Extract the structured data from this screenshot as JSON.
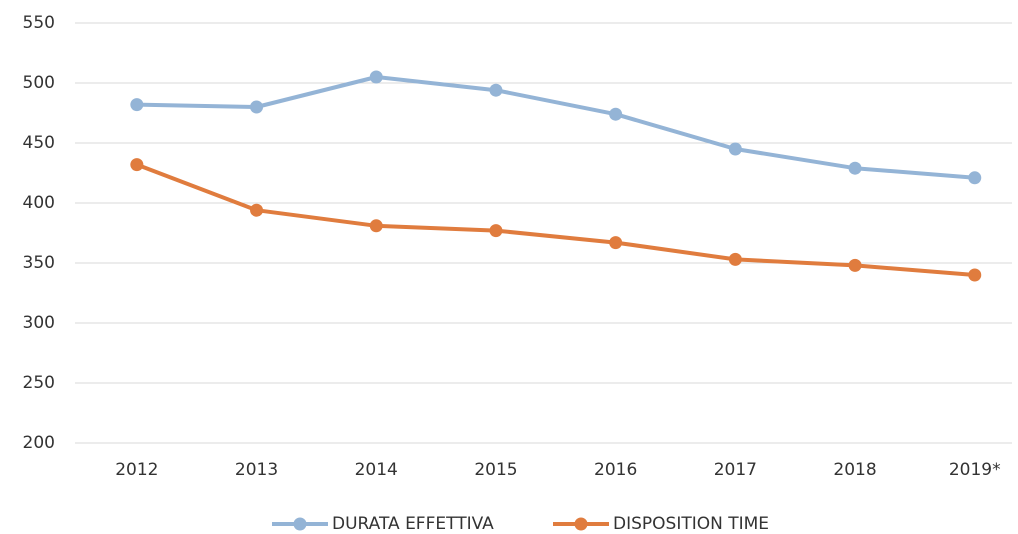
{
  "chart_data": {
    "type": "line",
    "categories": [
      "2012",
      "2013",
      "2014",
      "2015",
      "2016",
      "2017",
      "2018",
      "2019*"
    ],
    "series": [
      {
        "name": "DURATA EFFETTIVA",
        "color": "#94b4d6",
        "values": [
          482,
          480,
          505,
          494,
          474,
          445,
          429,
          421
        ]
      },
      {
        "name": "DISPOSITION TIME",
        "color": "#e07c3e",
        "values": [
          432,
          394,
          381,
          377,
          367,
          353,
          348,
          340
        ]
      }
    ],
    "ylim": [
      200,
      550
    ],
    "yticks": [
      200,
      250,
      300,
      350,
      400,
      450,
      500,
      550
    ],
    "grid": true,
    "legend": "bottom"
  }
}
